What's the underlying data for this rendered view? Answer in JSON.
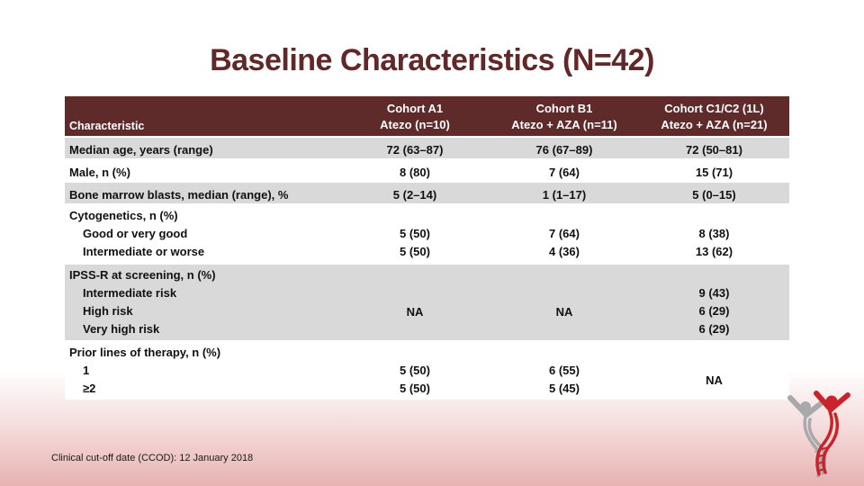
{
  "slide": {
    "title": "Baseline Characteristics (N=42)",
    "footer": "Clinical cut-off date (CCOD): 12 January 2018"
  },
  "colors": {
    "title_maroon": "#602829",
    "header_maroon": "#5E2A2A",
    "row_gray": "#D9D9D9",
    "gradient_bottom_pink": "#E7B2B2",
    "logo_red": "#C9242B",
    "logo_gray": "#A7A9AC"
  },
  "logo": {
    "name": "dna-helix-figures-logo"
  },
  "table": {
    "header": {
      "characteristic": "Characteristic",
      "columns": [
        {
          "line1": "Cohort A1",
          "line2": "Atezo (n=10)"
        },
        {
          "line1": "Cohort B1",
          "line2": "Atezo + AZA (n=11)"
        },
        {
          "line1": "Cohort C1/C2 (1L)",
          "line2": "Atezo + AZA (n=21)"
        }
      ]
    },
    "rows": [
      {
        "bg": "gray",
        "label_lines": [
          "Median age, years (range)"
        ],
        "cols": [
          {
            "lines": [
              "72 (63–87)"
            ]
          },
          {
            "lines": [
              "76 (67–89)"
            ]
          },
          {
            "lines": [
              "72 (50–81)"
            ]
          }
        ]
      },
      {
        "bg": "white",
        "label_lines": [
          "Male, n (%)"
        ],
        "cols": [
          {
            "lines": [
              "8 (80)"
            ]
          },
          {
            "lines": [
              "7 (64)"
            ]
          },
          {
            "lines": [
              "15 (71)"
            ]
          }
        ]
      },
      {
        "bg": "gray",
        "label_lines": [
          "Bone marrow blasts, median (range), %"
        ],
        "cols": [
          {
            "lines": [
              "5 (2–14)"
            ]
          },
          {
            "lines": [
              "1 (1–17)"
            ]
          },
          {
            "lines": [
              "5 (0–15)"
            ]
          }
        ]
      },
      {
        "bg": "white",
        "label_lines": [
          "Cytogenetics, n (%)",
          "Good or very good",
          "Intermediate or worse"
        ],
        "cols": [
          {
            "lines": [
              "",
              "5 (50)",
              "5 (50)"
            ]
          },
          {
            "lines": [
              "",
              "7 (64)",
              "4 (36)"
            ]
          },
          {
            "lines": [
              "",
              "8 (38)",
              "13 (62)"
            ]
          }
        ]
      },
      {
        "bg": "gray",
        "label_lines": [
          "IPSS-R at screening, n (%)",
          "Intermediate risk",
          "High risk",
          "Very high risk"
        ],
        "cols": [
          {
            "centered": "NA"
          },
          {
            "centered": "NA"
          },
          {
            "lines": [
              "",
              "9 (43)",
              "6 (29)",
              "6 (29)"
            ]
          }
        ]
      },
      {
        "bg": "white",
        "label_lines": [
          "Prior lines of therapy, n (%)",
          "1",
          "≥2"
        ],
        "cols": [
          {
            "lines": [
              "",
              "5 (50)",
              "5 (50)"
            ]
          },
          {
            "lines": [
              "",
              "6 (55)",
              "5 (45)"
            ]
          },
          {
            "centered": "NA"
          }
        ]
      }
    ]
  }
}
